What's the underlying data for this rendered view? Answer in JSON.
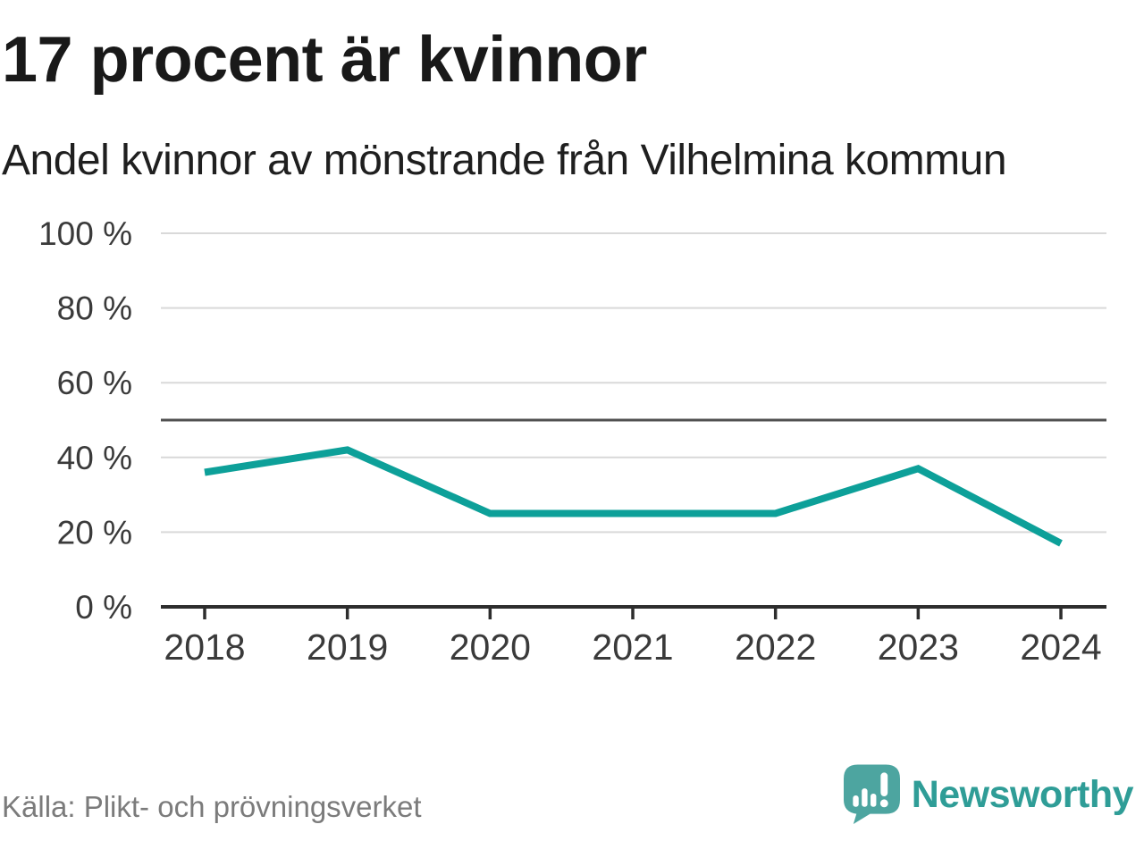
{
  "header": {
    "title": "17 procent är kvinnor",
    "subtitle": "Andel kvinnor av mönstrande från Vilhelmina kommun"
  },
  "chart_data": {
    "type": "line",
    "title": "17 procent är kvinnor",
    "subtitle": "Andel kvinnor av mönstrande från Vilhelmina kommun",
    "x": [
      "2018",
      "2019",
      "2020",
      "2021",
      "2022",
      "2023",
      "2024"
    ],
    "series": [
      {
        "name": "Andel kvinnor av mönstrande från Vilhelmina kommun",
        "values": [
          36,
          42,
          25,
          25,
          25,
          37,
          17
        ]
      }
    ],
    "xlabel": "",
    "ylabel": "",
    "ylim": [
      0,
      100
    ],
    "y_ticks": [
      0,
      20,
      40,
      60,
      80,
      100
    ],
    "y_tick_labels": [
      "0 %",
      "20 %",
      "40 %",
      "60 %",
      "80 %",
      "100 %"
    ],
    "reference_line": 50,
    "grid": "horizontal",
    "legend_position": "none",
    "colors": {
      "line": "#0da099",
      "gridline": "#d9d9d9",
      "reference_line": "#515151",
      "axis": "#2d2d2d",
      "tick_label": "#3a3a3a"
    }
  },
  "footer": {
    "source": "Källa: Plikt- och prövningsverket",
    "brand_name": "Newsworthy",
    "brand_colors": {
      "icon": "#4da5a0",
      "wordmark": "#2f9d97"
    }
  }
}
